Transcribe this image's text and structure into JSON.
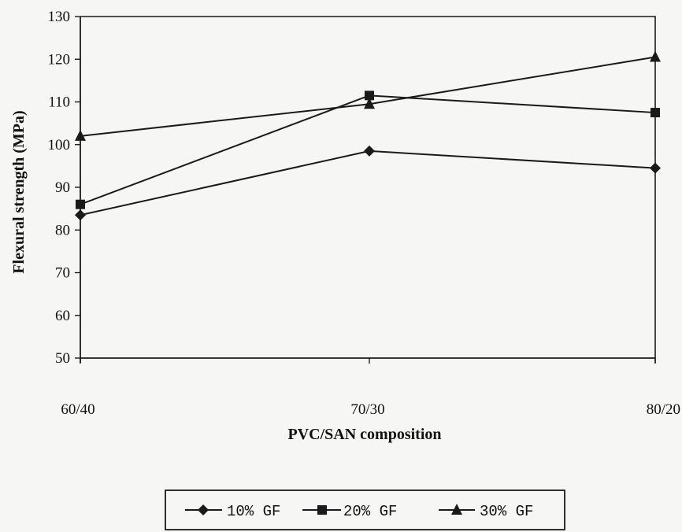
{
  "chart_data": {
    "type": "line",
    "categories": [
      "60/40",
      "70/30",
      "80/20"
    ],
    "series": [
      {
        "name": "10% GF",
        "marker": "diamond",
        "values": [
          83.5,
          98.5,
          94.5
        ]
      },
      {
        "name": "20% GF",
        "marker": "square",
        "values": [
          86,
          111.5,
          107.5
        ]
      },
      {
        "name": "30% GF",
        "marker": "triangle",
        "values": [
          102,
          109.5,
          120.5
        ]
      }
    ],
    "ylabel": "Flexural strength (MPa)",
    "xlabel": "PVC/SAN composition",
    "ylim": [
      50,
      130
    ],
    "yticks": [
      50,
      60,
      70,
      80,
      90,
      100,
      110,
      120,
      130
    ],
    "grid": false,
    "legend_position": "bottom",
    "colors": {
      "line": "#1a1a1a",
      "background": "#f6f6f4"
    }
  }
}
